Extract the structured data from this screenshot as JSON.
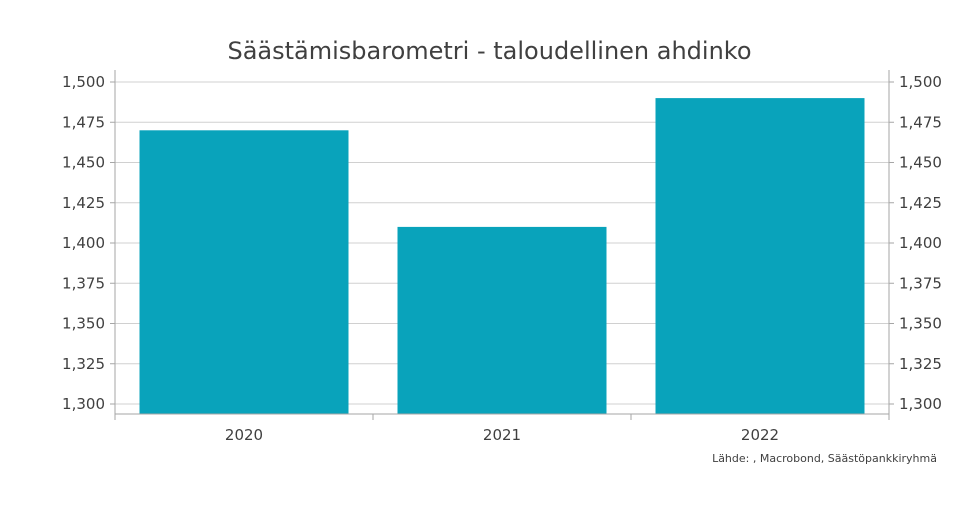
{
  "chart_data": {
    "type": "bar",
    "title": "Säästämisbarometri - taloudellinen ahdinko",
    "categories": [
      "2020",
      "2021",
      "2022"
    ],
    "values": [
      1.47,
      1.41,
      1.49
    ],
    "ylim": [
      1.3,
      1.5
    ],
    "yticks": [
      1.3,
      1.325,
      1.35,
      1.375,
      1.4,
      1.425,
      1.45,
      1.475,
      1.5
    ],
    "ytick_labels": [
      "1,300",
      "1,325",
      "1,350",
      "1,375",
      "1,400",
      "1,425",
      "1,450",
      "1,475",
      "1,500"
    ],
    "bar_color": "#09A3BB",
    "grid": true,
    "source": "Lähde: , Macrobond, Säästöpankkiryhmä"
  }
}
